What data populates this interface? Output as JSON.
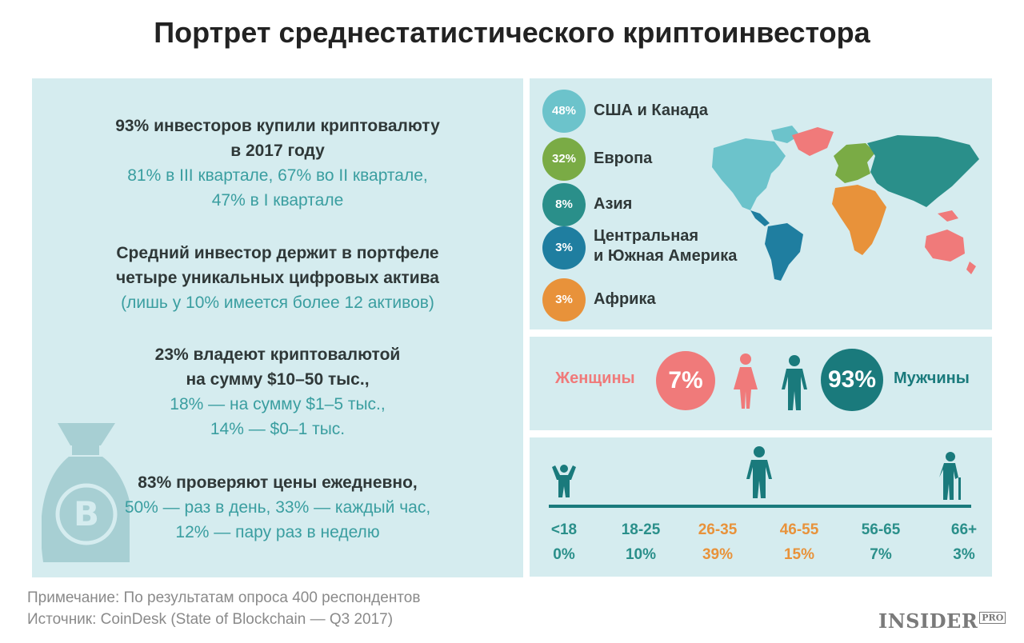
{
  "title": "Портрет среднестатистического криптоинвестора",
  "stats": [
    {
      "dark": [
        "93% инвесторов купили криптовалюту",
        "в 2017 году"
      ],
      "teal": [
        "81% в III квартале, 67% во II квартале,",
        "47% в I квартале"
      ]
    },
    {
      "dark": [
        "Средний инвестор держит в портфеле",
        "четыре уникальных цифровых актива"
      ],
      "teal": [
        "(лишь у 10% имеется более 12 активов)"
      ]
    },
    {
      "dark": [
        "23% владеют криптовалютой",
        "на сумму $10–50 тыс.,"
      ],
      "teal": [
        "18% — на сумму $1–5 тыс.,",
        "14% — $0–1 тыс."
      ]
    },
    {
      "dark": [
        "83% проверяют цены ежедневно,"
      ],
      "teal": [
        "50% — раз в день, 33% — каждый час,",
        "12% — пару раз в неделю"
      ]
    }
  ],
  "regions": [
    {
      "pct": "48%",
      "label": [
        "США и Канада"
      ],
      "color": "#6cc3cb"
    },
    {
      "pct": "32%",
      "label": [
        "Европа"
      ],
      "color": "#7aab45"
    },
    {
      "pct": "8%",
      "label": [
        "Азия"
      ],
      "color": "#2a8f8a"
    },
    {
      "pct": "3%",
      "label": [
        "Центральная",
        "и Южная Америка"
      ],
      "color": "#1f7ea0"
    },
    {
      "pct": "3%",
      "label": [
        "Африка"
      ],
      "color": "#e8923a"
    }
  ],
  "gender": {
    "women_label": "Женщины",
    "women_pct": "7%",
    "women_color": "#f07a7a",
    "men_label": "Мужчины",
    "men_pct": "93%",
    "men_color": "#1a7a7c"
  },
  "chart_data": {
    "type": "table",
    "categories": [
      "<18",
      "18-25",
      "26-35",
      "46-55",
      "56-65",
      "66+"
    ],
    "values_text": [
      "0%",
      "10%",
      "39%",
      "15%",
      "7%",
      "3%"
    ],
    "values": [
      0,
      10,
      39,
      15,
      7,
      3
    ],
    "highlight_color": "#e8923a",
    "base_color": "#2a8f8a",
    "highlighted": [
      false,
      false,
      true,
      true,
      false,
      false
    ]
  },
  "footnotes": {
    "note": "Примечание: По результатам опроса 400 респондентов",
    "source": "Источник: CoinDesk (State of Blockchain — Q3 2017)"
  },
  "logo": {
    "main": "INSIDER",
    "sub": "PRO"
  }
}
